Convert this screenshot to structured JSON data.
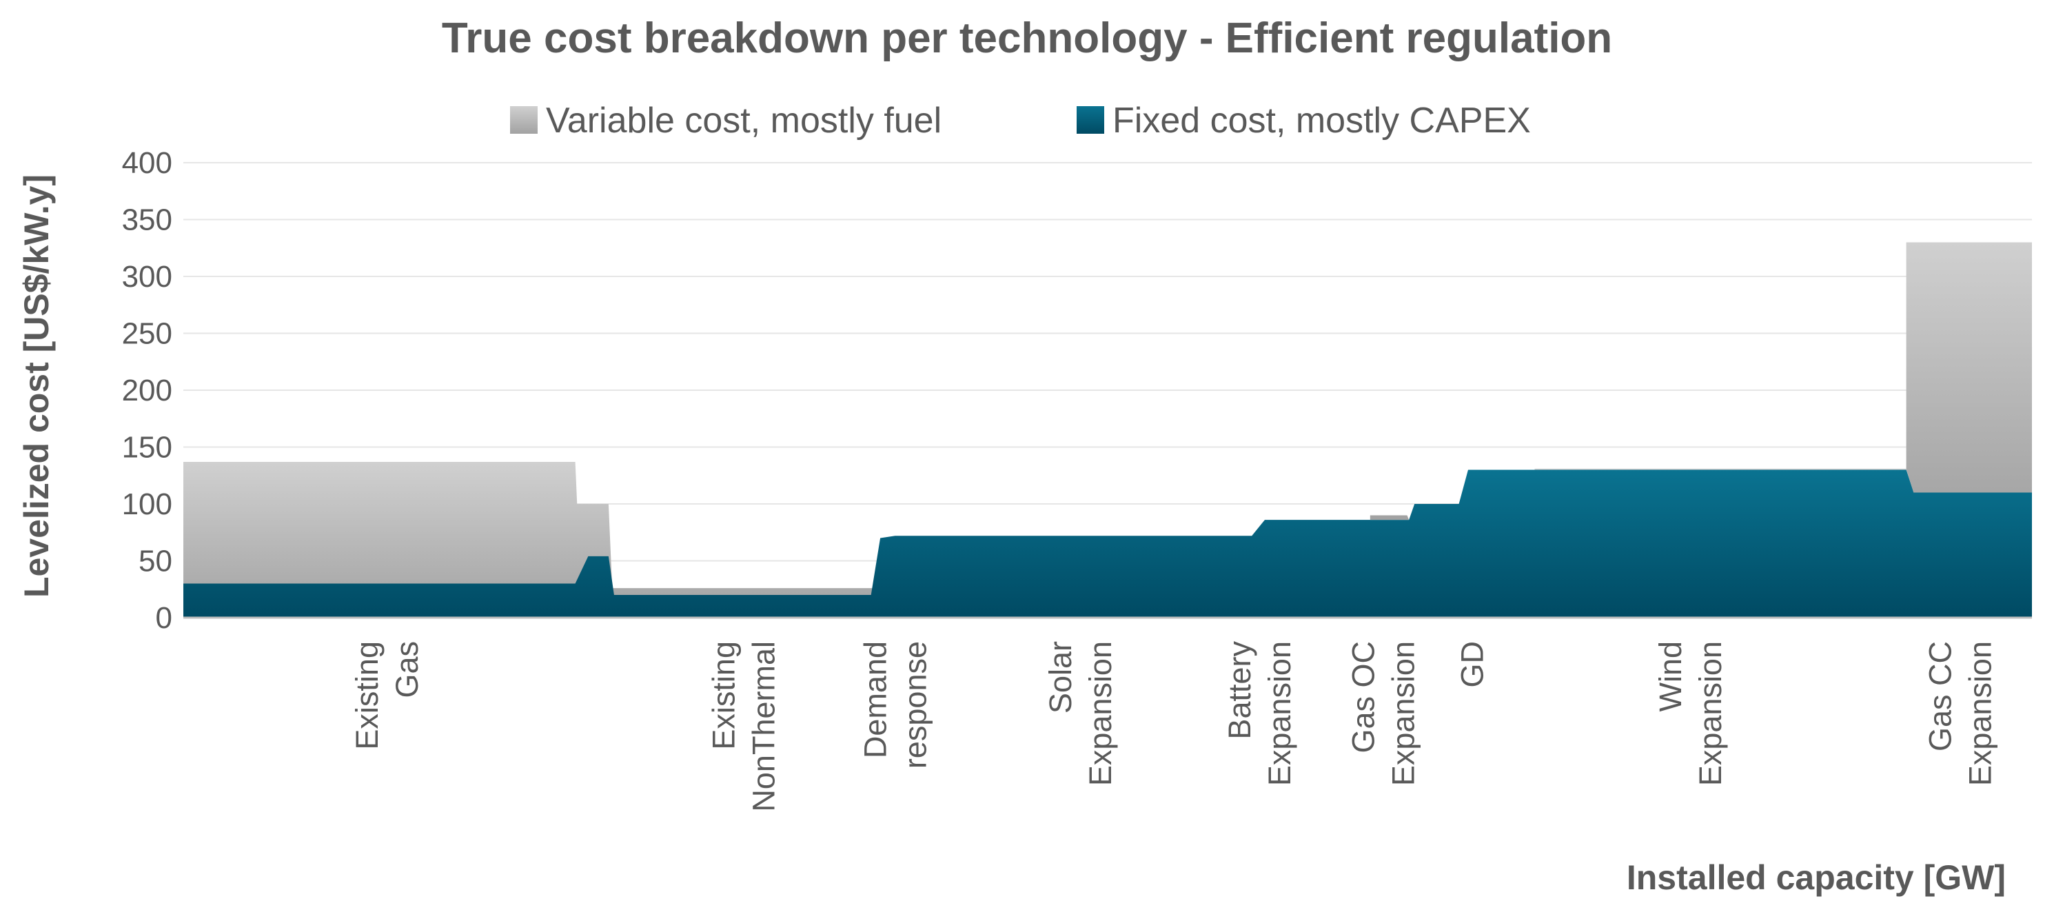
{
  "chart_data": {
    "type": "area",
    "title": "True cost breakdown per technology - Efficient regulation",
    "xlabel": "Installed capacity [GW]",
    "ylabel": "Levelized cost [US$/kW.y]",
    "ylim": [
      0,
      400
    ],
    "yticks": [
      0,
      50,
      100,
      150,
      200,
      250,
      300,
      350,
      400
    ],
    "xlim": [
      0,
      100
    ],
    "grid": true,
    "legend_position": "top",
    "series": [
      {
        "name": "Variable cost, mostly fuel",
        "color": "#a6a6a6",
        "points": [
          [
            0,
            137
          ],
          [
            21.2,
            137
          ],
          [
            21.3,
            100
          ],
          [
            23.0,
            100
          ],
          [
            23.2,
            26
          ],
          [
            37.0,
            26
          ],
          [
            37.2,
            26
          ],
          [
            66.2,
            26
          ],
          [
            66.3,
            27
          ],
          [
            72.8,
            27
          ],
          [
            73.1,
            131
          ],
          [
            100,
            131
          ]
        ]
      },
      {
        "name": "Fixed cost, mostly CAPEX",
        "color": "#006583",
        "points": [
          [
            0,
            30
          ],
          [
            21.2,
            30
          ],
          [
            21.9,
            54
          ],
          [
            23.0,
            54
          ],
          [
            23.3,
            20
          ],
          [
            37.2,
            20
          ],
          [
            37.7,
            70
          ],
          [
            38.5,
            72
          ],
          [
            57.8,
            72
          ],
          [
            58.5,
            86
          ],
          [
            64.1,
            86
          ],
          [
            64.2,
            86
          ],
          [
            66.3,
            86
          ],
          [
            66.6,
            100
          ],
          [
            69.0,
            100
          ],
          [
            69.5,
            130
          ],
          [
            93.2,
            130
          ],
          [
            93.6,
            110
          ],
          [
            100,
            110
          ]
        ]
      },
      {
        "name": "Variable cost, mostly fuel (overlay)",
        "color": "#a6a6a6",
        "points": [
          [
            64.2,
            86
          ],
          [
            64.2,
            90
          ],
          [
            66.2,
            90
          ],
          [
            66.3,
            86
          ],
          [
            93.2,
            131
          ],
          [
            93.2,
            330
          ],
          [
            100,
            330
          ],
          [
            100,
            110
          ],
          [
            93.6,
            110
          ],
          [
            93.2,
            131
          ]
        ]
      }
    ],
    "categories": [
      {
        "lines": [
          "Existing",
          "Gas"
        ],
        "x": 11
      },
      {
        "lines": [
          "Existing",
          "NonThermal"
        ],
        "x": 30.3
      },
      {
        "lines": [
          "Demand",
          "response"
        ],
        "x": 38.5
      },
      {
        "lines": [
          "Solar",
          "Expansion"
        ],
        "x": 48.5
      },
      {
        "lines": [
          "Battery",
          "Expansion"
        ],
        "x": 58.2
      },
      {
        "lines": [
          "Gas OC",
          "Expansion"
        ],
        "x": 64.9
      },
      {
        "lines": [
          "GD"
        ],
        "x": 69.7
      },
      {
        "lines": [
          "Wind",
          "Expansion"
        ],
        "x": 81.5
      },
      {
        "lines": [
          "Gas CC",
          "Expansion"
        ],
        "x": 96.1
      }
    ]
  }
}
